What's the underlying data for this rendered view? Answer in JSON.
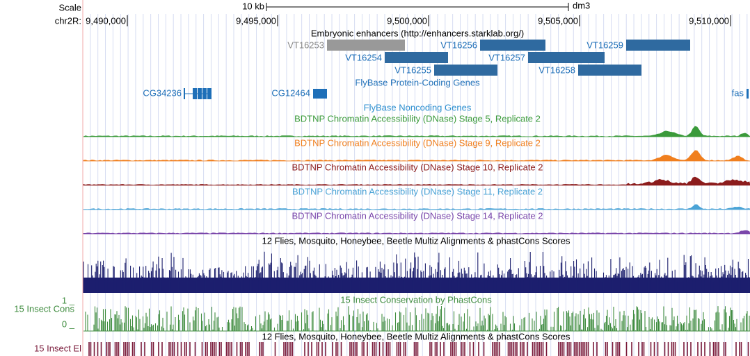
{
  "header": {
    "scale_label": "Scale",
    "chrom_label": "chr2R:",
    "scale_bar": "10 kb",
    "assembly": "dm3",
    "positions": [
      "9,490,000",
      "9,495,000",
      "9,500,000",
      "9,505,000",
      "9,510,000"
    ]
  },
  "enhancer_track": {
    "title": "Embryonic enhancers (http://enhancers.starklab.org/)",
    "features": [
      {
        "label": "VT16253",
        "row": 0,
        "muted": true
      },
      {
        "label": "VT16256",
        "row": 0
      },
      {
        "label": "VT16259",
        "row": 0
      },
      {
        "label": "VT16254",
        "row": 1
      },
      {
        "label": "VT16257",
        "row": 1
      },
      {
        "label": "VT16255",
        "row": 2
      },
      {
        "label": "VT16258",
        "row": 2
      }
    ]
  },
  "gene_track": {
    "title": "FlyBase Protein-Coding Genes",
    "genes": [
      "CG34236",
      "CG12464",
      "fas"
    ]
  },
  "noncoding_track": {
    "title": "FlyBase Noncoding Genes"
  },
  "dnase_tracks": [
    {
      "title": "BDTNP Chromatin Accessibility (DNase) Stage 5, Replicate 2",
      "color": "#3a9a3a"
    },
    {
      "title": "BDTNP Chromatin Accessibility (DNase) Stage 9, Replicate 2",
      "color": "#f07f1e"
    },
    {
      "title": "BDTNP Chromatin Accessibility (DNase) Stage 10, Replicate 2",
      "color": "#8c1c1c"
    },
    {
      "title": "BDTNP Chromatin Accessibility (DNase) Stage 11, Replicate 2",
      "color": "#4aa3d6"
    },
    {
      "title": "BDTNP Chromatin Accessibility (DNase) Stage 14, Replicate 2",
      "color": "#7a46aa"
    }
  ],
  "multiz_track": {
    "title": "12 Flies, Mosquito, Honeybee, Beetle Multiz Alignments & phastCons Scores"
  },
  "cons_track": {
    "title": "15 Insect Conservation by PhastCons",
    "side_label": "15 Insect Cons",
    "max_label": "1 _",
    "min_label": "0 _"
  },
  "elements_track": {
    "title": "12 Flies, Mosquito, Honeybee, Beetle Multiz Alignments & phastCons Scores",
    "side_label": "15 Insect El"
  }
}
